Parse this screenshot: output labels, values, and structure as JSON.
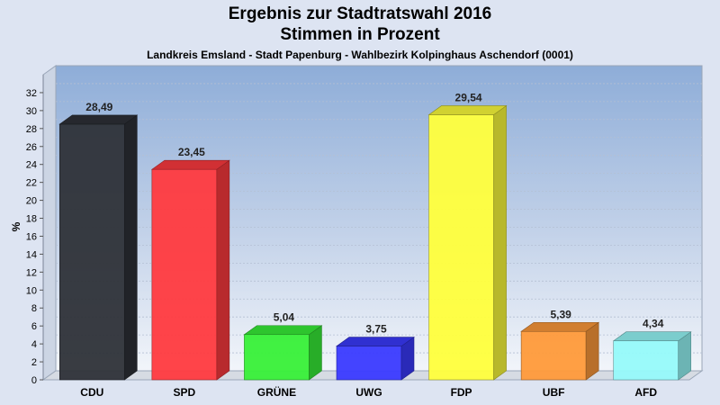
{
  "chart_data": {
    "type": "bar",
    "title": "Ergebnis zur Stadtratswahl 2016",
    "title2": "Stimmen in Prozent",
    "subtitle": "Landkreis Emsland - Stadt Papenburg - Wahlbezirk Kolpinghaus Aschendorf (0001)",
    "ylabel": "%",
    "ylim": [
      0,
      34
    ],
    "yticks": [
      0,
      2,
      4,
      6,
      8,
      10,
      12,
      14,
      16,
      18,
      20,
      22,
      24,
      26,
      28,
      30,
      32
    ],
    "categories": [
      "CDU",
      "SPD",
      "GRÜNE",
      "UWG",
      "FDP",
      "UBF",
      "AFD"
    ],
    "values": [
      28.49,
      23.45,
      5.04,
      3.75,
      29.54,
      5.39,
      4.34
    ],
    "value_labels": [
      "28,49",
      "23,45",
      "5,04",
      "3,75",
      "29,54",
      "5,39",
      "4,34"
    ],
    "colors": [
      "#2e3138",
      "#ff3a3f",
      "#38f038",
      "#3a3aff",
      "#ffff3c",
      "#ff9a3a",
      "#96fafa"
    ],
    "grid": true,
    "legend": "none"
  }
}
